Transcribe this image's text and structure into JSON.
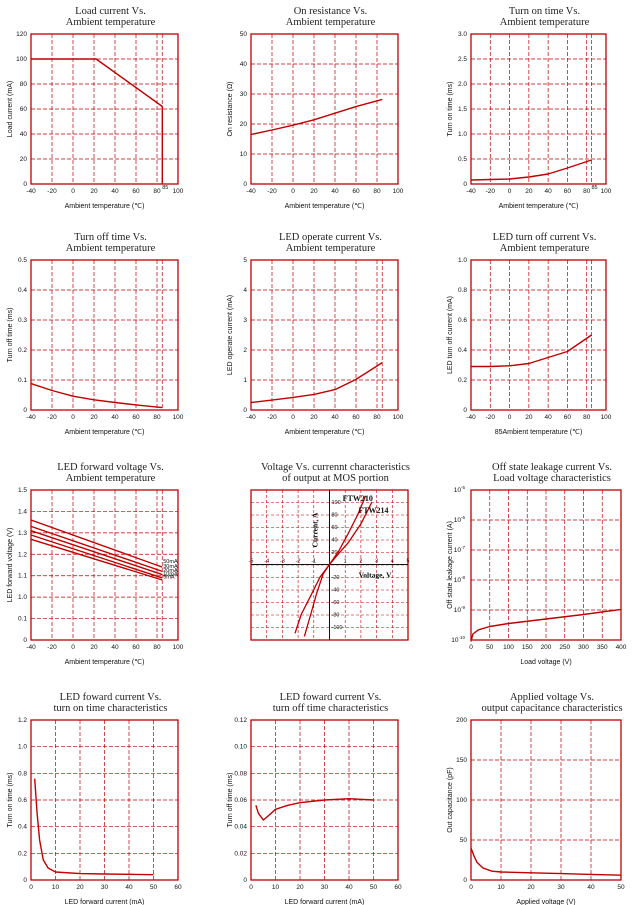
{
  "colors": {
    "frame": "#c00000",
    "curve": "#c00000",
    "text": "#111111"
  },
  "chart_data": [
    {
      "id": "c1",
      "type": "line",
      "title": [
        "Load current Vs.",
        "Ambient temperature"
      ],
      "ylabel": "Load current (mA)",
      "xlabel": "Ambient temperature (℃)",
      "xlim": [
        -40,
        100
      ],
      "ylim": [
        0,
        120
      ],
      "xticks": [
        "-40",
        "-20",
        "0",
        "20",
        "40",
        "60",
        "80",
        "100"
      ],
      "yticks": [
        "0",
        "20",
        "40",
        "60",
        "80",
        "100",
        "120"
      ],
      "extra_label": "85",
      "series": [
        {
          "name": "load",
          "points": [
            [
              -40,
              100
            ],
            [
              22,
              100
            ],
            [
              85,
              62
            ],
            [
              85,
              0
            ]
          ]
        }
      ]
    },
    {
      "id": "c2",
      "type": "line",
      "title": [
        "On resistance Vs.",
        "Ambient temperature"
      ],
      "ylabel": "On resistance (Ω)",
      "xlabel": "Ambient temperature (℃)",
      "xlim": [
        -40,
        100
      ],
      "ylim": [
        0,
        50
      ],
      "xticks": [
        "-40",
        "-20",
        "0",
        "20",
        "40",
        "60",
        "80",
        "100"
      ],
      "yticks": [
        "0",
        "10",
        "20",
        "30",
        "40",
        "50"
      ],
      "series": [
        {
          "name": "ron",
          "points": [
            [
              -40,
              16.5
            ],
            [
              -20,
              18
            ],
            [
              0,
              19.6
            ],
            [
              20,
              21.4
            ],
            [
              40,
              23.6
            ],
            [
              60,
              25.8
            ],
            [
              85,
              28.2
            ]
          ]
        }
      ]
    },
    {
      "id": "c3",
      "type": "line",
      "title": [
        "Turn on time Vs.",
        "Ambient temperature"
      ],
      "ylabel": "Turn on time (ms)",
      "xlabel": "Ambient temperature (℃)",
      "xlim": [
        -40,
        100
      ],
      "ylim": [
        0,
        3.0
      ],
      "xticks": [
        "-40",
        "-20",
        "0",
        "20",
        "40",
        "60",
        "80",
        "100"
      ],
      "yticks": [
        "0",
        "0.5",
        "1.0",
        "1.5",
        "2.0",
        "2.5",
        "3.0"
      ],
      "extra_label": "85",
      "series": [
        {
          "name": "ton",
          "points": [
            [
              -40,
              0.08
            ],
            [
              -20,
              0.09
            ],
            [
              0,
              0.1
            ],
            [
              20,
              0.14
            ],
            [
              40,
              0.2
            ],
            [
              60,
              0.32
            ],
            [
              85,
              0.48
            ]
          ]
        }
      ]
    },
    {
      "id": "c4",
      "type": "line",
      "title": [
        "Turn off time Vs.",
        "Ambient temperature"
      ],
      "ylabel": "Turn off time (ms)",
      "xlabel": "Ambient temperature (℃)",
      "xlim": [
        -40,
        100
      ],
      "ylim": [
        0,
        0.5
      ],
      "xticks": [
        "-40",
        "-20",
        "0",
        "20",
        "40",
        "60",
        "80",
        "100"
      ],
      "yticks": [
        "0",
        "0.1",
        "0.2",
        "0.3",
        "0.4",
        "0.5"
      ],
      "series": [
        {
          "name": "toff",
          "points": [
            [
              -40,
              0.088
            ],
            [
              -20,
              0.065
            ],
            [
              0,
              0.046
            ],
            [
              20,
              0.034
            ],
            [
              40,
              0.025
            ],
            [
              60,
              0.017
            ],
            [
              85,
              0.008
            ]
          ]
        }
      ]
    },
    {
      "id": "c5",
      "type": "line",
      "title": [
        "LED operate current Vs.",
        "Ambient temperature"
      ],
      "ylabel": "LED operate current (mA)",
      "xlabel": "Ambient temperature (℃)",
      "xlim": [
        -40,
        100
      ],
      "ylim": [
        0,
        5
      ],
      "xticks": [
        "-40",
        "-20",
        "0",
        "20",
        "40",
        "60",
        "80",
        "100"
      ],
      "yticks": [
        "0",
        "1",
        "2",
        "3",
        "4",
        "5"
      ],
      "series": [
        {
          "name": "iop",
          "points": [
            [
              -40,
              0.25
            ],
            [
              -20,
              0.33
            ],
            [
              0,
              0.42
            ],
            [
              20,
              0.52
            ],
            [
              40,
              0.68
            ],
            [
              60,
              1.02
            ],
            [
              85,
              1.58
            ]
          ]
        }
      ]
    },
    {
      "id": "c6",
      "type": "line",
      "title": [
        "LED turn off current Vs.",
        "Ambient temperature"
      ],
      "ylabel": "LED turn off current (mA)",
      "xlabel": "85Ambient temperature (℃)",
      "xlim": [
        -40,
        100
      ],
      "ylim": [
        0,
        1.0
      ],
      "xticks": [
        "-40",
        "-20",
        "0",
        "20",
        "40",
        "60",
        "80",
        "100"
      ],
      "yticks": [
        "0",
        "0.2",
        "0.4",
        "0.6",
        "0.8",
        "1.0"
      ],
      "series": [
        {
          "name": "ioff",
          "points": [
            [
              -40,
              0.29
            ],
            [
              -20,
              0.29
            ],
            [
              0,
              0.295
            ],
            [
              20,
              0.31
            ],
            [
              40,
              0.35
            ],
            [
              60,
              0.39
            ],
            [
              85,
              0.5
            ]
          ]
        }
      ]
    },
    {
      "id": "c7",
      "type": "line",
      "title": [
        "LED forward voltage Vs.",
        "Ambient temperature"
      ],
      "ylabel": "LED forward voltage (V)",
      "xlabel": "Ambient temperature (℃)",
      "xlim": [
        -40,
        100
      ],
      "ylim": [
        0,
        1.5
      ],
      "xticks": [
        "-40",
        "-20",
        "0",
        "20",
        "40",
        "60",
        "80",
        "100"
      ],
      "yticks": [
        "0",
        "0.1",
        "1.0",
        "1.1",
        "1.2",
        "1.3",
        "1.4",
        "1.5"
      ],
      "ybreak": true,
      "series": [
        {
          "name": "50mA",
          "points": [
            [
              -40,
              1.36
            ],
            [
              85,
              1.14
            ]
          ]
        },
        {
          "name": "30mA",
          "points": [
            [
              -40,
              1.33
            ],
            [
              85,
              1.12
            ]
          ]
        },
        {
          "name": "20mA",
          "points": [
            [
              -40,
              1.31
            ],
            [
              85,
              1.105
            ]
          ]
        },
        {
          "name": "10mA",
          "points": [
            [
              -40,
              1.29
            ],
            [
              85,
              1.09
            ]
          ]
        },
        {
          "name": "5mA",
          "points": [
            [
              -40,
              1.27
            ],
            [
              85,
              1.08
            ]
          ]
        }
      ]
    },
    {
      "id": "c8",
      "type": "line",
      "title": [
        "Voltage Vs. currennt characteristics",
        "of output at MOS portion"
      ],
      "xlim": [
        -5,
        5
      ],
      "ylim": [
        -120,
        120
      ],
      "xticks": [
        "-5",
        "-4",
        "-3",
        "-2",
        "-1",
        "1",
        "2",
        "3",
        "4",
        "5"
      ],
      "yticks": [
        "-100",
        "-80",
        "-60",
        "-40",
        "-20",
        "20",
        "40",
        "60",
        "80",
        "100"
      ],
      "current_label": "Current, A",
      "voltage_label": "Voltage, V",
      "series": [
        {
          "name": "FTW210",
          "points": [
            [
              -2.2,
              -110
            ],
            [
              -1.8,
              -80
            ],
            [
              -1.2,
              -50
            ],
            [
              -0.6,
              -20
            ],
            [
              0,
              0
            ],
            [
              0.6,
              22
            ],
            [
              1.2,
              50
            ],
            [
              1.8,
              80
            ],
            [
              2.3,
              110
            ]
          ]
        },
        {
          "name": "FTW214",
          "points": [
            [
              -1.6,
              -115
            ],
            [
              -1.2,
              -80
            ],
            [
              -0.8,
              -45
            ],
            [
              -0.4,
              -15
            ],
            [
              0,
              0
            ],
            [
              0.5,
              15
            ],
            [
              1.2,
              35
            ],
            [
              2.0,
              65
            ],
            [
              2.7,
              100
            ]
          ]
        }
      ]
    },
    {
      "id": "c9",
      "type": "line",
      "title": [
        "Off state leakage current Vs.",
        "Load voltage characteristics"
      ],
      "ylabel": "Off state leakage current (A)",
      "xlabel": "Load voltage (V)",
      "xlim": [
        0,
        400
      ],
      "ylim": [
        -10,
        -5
      ],
      "xticks": [
        "0",
        "50",
        "100",
        "150",
        "200",
        "250",
        "300",
        "350",
        "400"
      ],
      "yticks": [
        "-10",
        "-9",
        "-8",
        "-7",
        "-6",
        "-5"
      ],
      "ylog": true,
      "series": [
        {
          "name": "leak",
          "points": [
            [
              0,
              -10.05
            ],
            [
              5,
              -9.8
            ],
            [
              20,
              -9.66
            ],
            [
              50,
              -9.55
            ],
            [
              100,
              -9.45
            ],
            [
              200,
              -9.3
            ],
            [
              300,
              -9.15
            ],
            [
              400,
              -8.98
            ]
          ]
        }
      ]
    },
    {
      "id": "c10",
      "type": "line",
      "title": [
        "LED foward current Vs.",
        "turn on time characteristics"
      ],
      "ylabel": "Turn on time (ms)",
      "xlabel": "LED forward current (mA)",
      "xlim": [
        0,
        60
      ],
      "ylim": [
        0,
        1.2
      ],
      "xticks": [
        "0",
        "10",
        "20",
        "30",
        "40",
        "50",
        "60"
      ],
      "yticks": [
        "0",
        "0.2",
        "0.4",
        "0.6",
        "0.8",
        "1.0",
        "1.2"
      ],
      "series": [
        {
          "name": "ton_if",
          "points": [
            [
              1.5,
              0.76
            ],
            [
              2.5,
              0.5
            ],
            [
              3.5,
              0.3
            ],
            [
              5,
              0.15
            ],
            [
              7,
              0.09
            ],
            [
              10,
              0.06
            ],
            [
              20,
              0.048
            ],
            [
              30,
              0.045
            ],
            [
              50,
              0.04
            ]
          ]
        }
      ]
    },
    {
      "id": "c11",
      "type": "line",
      "title": [
        "LED foward current Vs.",
        "turn off time characteristics"
      ],
      "ylabel": "Turn off time (ms)",
      "xlabel": "LED forward current (mA)",
      "xlim": [
        0,
        60
      ],
      "ylim": [
        0,
        0.12
      ],
      "xticks": [
        "0",
        "10",
        "20",
        "30",
        "40",
        "50",
        "60"
      ],
      "yticks": [
        "0",
        "0.02",
        "0.04",
        "0.06",
        "0.08",
        "0.10",
        "0.12"
      ],
      "series": [
        {
          "name": "toff_if",
          "points": [
            [
              2,
              0.056
            ],
            [
              3,
              0.05
            ],
            [
              5,
              0.045
            ],
            [
              7,
              0.048
            ],
            [
              10,
              0.053
            ],
            [
              15,
              0.056
            ],
            [
              20,
              0.058
            ],
            [
              30,
              0.06
            ],
            [
              40,
              0.061
            ],
            [
              50,
              0.06
            ]
          ]
        }
      ]
    },
    {
      "id": "c12",
      "type": "line",
      "title": [
        "Applied voltage Vs.",
        "output capacitance characteristics"
      ],
      "ylabel": "Out capacitance (pF)",
      "xlabel": "Applied voltage (V)",
      "xlim": [
        0,
        50
      ],
      "ylim": [
        0,
        200
      ],
      "xticks": [
        "0",
        "10",
        "20",
        "30",
        "40",
        "50"
      ],
      "yticks": [
        "0",
        "50",
        "100",
        "150",
        "200"
      ],
      "series": [
        {
          "name": "cout",
          "points": [
            [
              0,
              40
            ],
            [
              1,
              30
            ],
            [
              2,
              22
            ],
            [
              4,
              15
            ],
            [
              7,
              11
            ],
            [
              10,
              10
            ],
            [
              20,
              9
            ],
            [
              30,
              8
            ],
            [
              40,
              7
            ],
            [
              50,
              6
            ]
          ]
        }
      ]
    }
  ]
}
